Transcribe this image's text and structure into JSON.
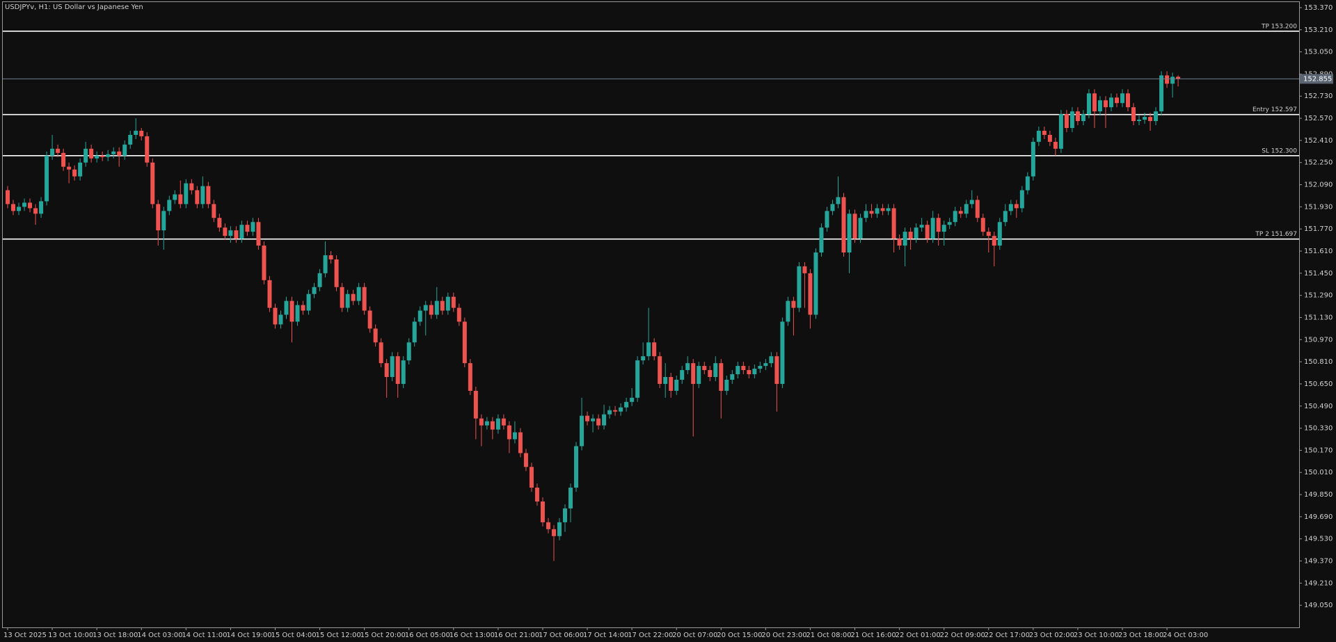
{
  "chart_data": {
    "type": "candlestick",
    "title": "USDJPYv, H1:  US Dollar vs Japanese Yen",
    "categories": [
      "13 Oct 2025",
      null,
      null,
      null,
      null,
      null,
      null,
      null,
      "13 Oct 10:00",
      null,
      null,
      null,
      null,
      null,
      null,
      null,
      "13 Oct 18:00",
      null,
      null,
      null,
      null,
      null,
      null,
      null,
      "14 Oct 03:00",
      null,
      null,
      null,
      null,
      null,
      null,
      null,
      "14 Oct 11:00",
      null,
      null,
      null,
      null,
      null,
      null,
      null,
      "14 Oct 19:00",
      null,
      null,
      null,
      null,
      null,
      null,
      null,
      "15 Oct 04:00",
      null,
      null,
      null,
      null,
      null,
      null,
      null,
      "15 Oct 12:00",
      null,
      null,
      null,
      null,
      null,
      null,
      null,
      "15 Oct 20:00",
      null,
      null,
      null,
      null,
      null,
      null,
      null,
      "16 Oct 05:00",
      null,
      null,
      null,
      null,
      null,
      null,
      null,
      "16 Oct 13:00",
      null,
      null,
      null,
      null,
      null,
      null,
      null,
      "16 Oct 21:00",
      null,
      null,
      null,
      null,
      null,
      null,
      null,
      "17 Oct 06:00",
      null,
      null,
      null,
      null,
      null,
      null,
      null,
      "17 Oct 14:00",
      null,
      null,
      null,
      null,
      null,
      null,
      null,
      "17 Oct 22:00",
      null,
      null,
      null,
      null,
      null,
      null,
      null,
      "20 Oct 07:00",
      null,
      null,
      null,
      null,
      null,
      null,
      null,
      "20 Oct 15:00",
      null,
      null,
      null,
      null,
      null,
      null,
      null,
      "20 Oct 23:00",
      null,
      null,
      null,
      null,
      null,
      null,
      null,
      "21 Oct 08:00",
      null,
      null,
      null,
      null,
      null,
      null,
      null,
      "21 Oct 16:00",
      null,
      null,
      null,
      null,
      null,
      null,
      null,
      "22 Oct 01:00",
      null,
      null,
      null,
      null,
      null,
      null,
      null,
      "22 Oct 09:00",
      null,
      null,
      null,
      null,
      null,
      null,
      null,
      "22 Oct 17:00",
      null,
      null,
      null,
      null,
      null,
      null,
      null,
      "23 Oct 02:00",
      null,
      null,
      null,
      null,
      null,
      null,
      null,
      "23 Oct 10:00",
      null,
      null,
      null,
      null,
      null,
      null,
      null,
      "23 Oct 18:00",
      null,
      null,
      null,
      null,
      null,
      null,
      null,
      "24 Oct 03:00",
      null,
      null
    ],
    "open": [
      152.05,
      151.95,
      151.9,
      151.93,
      151.96,
      151.92,
      151.88,
      151.97,
      152.3,
      152.35,
      152.32,
      152.22,
      152.2,
      152.15,
      152.25,
      152.35,
      152.28,
      152.3,
      152.29,
      152.31,
      152.33,
      152.3,
      152.38,
      152.45,
      152.48,
      152.44,
      152.25,
      151.95,
      151.76,
      151.9,
      151.98,
      152.02,
      151.95,
      152.1,
      152.05,
      151.95,
      152.08,
      151.95,
      151.85,
      151.78,
      151.72,
      151.76,
      151.7,
      151.8,
      151.75,
      151.82,
      151.65,
      151.4,
      151.2,
      151.08,
      151.15,
      151.25,
      151.1,
      151.22,
      151.18,
      151.3,
      151.35,
      151.45,
      151.58,
      151.55,
      151.35,
      151.2,
      151.3,
      151.25,
      151.35,
      151.18,
      151.05,
      150.95,
      150.8,
      150.7,
      150.85,
      150.65,
      150.82,
      150.95,
      151.1,
      151.18,
      151.22,
      151.15,
      151.25,
      151.18,
      151.28,
      151.2,
      151.1,
      150.8,
      150.6,
      150.4,
      150.35,
      150.38,
      150.32,
      150.4,
      150.35,
      150.25,
      150.3,
      150.15,
      150.05,
      149.9,
      149.8,
      149.65,
      149.6,
      149.55,
      149.65,
      149.75,
      149.9,
      150.2,
      150.42,
      150.38,
      150.4,
      150.35,
      150.43,
      150.46,
      150.45,
      150.48,
      150.52,
      150.55,
      150.82,
      150.85,
      150.95,
      150.85,
      150.65,
      150.7,
      150.6,
      150.68,
      150.75,
      150.8,
      150.65,
      150.78,
      150.75,
      150.7,
      150.8,
      150.6,
      150.68,
      150.72,
      150.78,
      150.75,
      150.72,
      150.76,
      150.78,
      150.8,
      150.85,
      150.65,
      151.1,
      151.25,
      151.2,
      151.5,
      151.45,
      151.15,
      151.6,
      151.78,
      151.9,
      151.95,
      152.0,
      151.6,
      151.88,
      151.7,
      151.85,
      151.9,
      151.88,
      151.92,
      151.9,
      151.92,
      151.7,
      151.65,
      151.75,
      151.7,
      151.78,
      151.8,
      151.7,
      151.85,
      151.75,
      151.8,
      151.82,
      151.9,
      151.88,
      151.95,
      151.98,
      151.85,
      151.75,
      151.72,
      151.65,
      151.82,
      151.9,
      151.95,
      151.92,
      152.05,
      152.15,
      152.4,
      152.48,
      152.45,
      152.4,
      152.35,
      152.6,
      152.5,
      152.62,
      152.55,
      152.6,
      152.75,
      152.62,
      152.7,
      152.65,
      152.72,
      152.68,
      152.75,
      152.65,
      152.55,
      152.56,
      152.58,
      152.55,
      152.62,
      152.88,
      152.82,
      152.87
    ],
    "high": [
      152.08,
      151.98,
      151.96,
      151.99,
      151.99,
      151.95,
      152.0,
      152.33,
      152.45,
      152.38,
      152.35,
      152.25,
      152.23,
      152.28,
      152.4,
      152.38,
      152.33,
      152.33,
      152.34,
      152.36,
      152.36,
      152.41,
      152.48,
      152.57,
      152.5,
      152.47,
      152.28,
      151.98,
      151.93,
      152.01,
      152.05,
      152.12,
      152.13,
      152.13,
      152.08,
      152.15,
      152.11,
      151.98,
      151.88,
      151.81,
      151.79,
      151.79,
      151.83,
      151.83,
      151.85,
      151.85,
      151.68,
      151.43,
      151.23,
      151.18,
      151.28,
      151.28,
      151.25,
      151.25,
      151.33,
      151.38,
      151.48,
      151.68,
      151.61,
      151.58,
      151.38,
      151.33,
      151.33,
      151.38,
      151.38,
      151.21,
      151.08,
      150.98,
      150.83,
      150.88,
      150.88,
      150.85,
      150.98,
      151.13,
      151.21,
      151.25,
      151.25,
      151.35,
      151.28,
      151.31,
      151.31,
      151.23,
      151.13,
      150.83,
      150.63,
      150.43,
      150.41,
      150.41,
      150.43,
      150.43,
      150.38,
      150.38,
      150.33,
      150.18,
      150.08,
      149.93,
      149.83,
      149.68,
      149.63,
      149.68,
      149.78,
      149.93,
      150.23,
      150.55,
      150.45,
      150.43,
      150.43,
      150.5,
      150.49,
      150.49,
      150.51,
      150.55,
      150.62,
      150.85,
      150.95,
      151.2,
      150.98,
      150.88,
      150.8,
      150.73,
      150.71,
      150.78,
      150.85,
      150.83,
      150.81,
      150.81,
      150.78,
      150.85,
      150.83,
      150.71,
      150.75,
      150.81,
      150.81,
      150.78,
      150.79,
      150.81,
      150.83,
      150.88,
      150.88,
      151.13,
      151.28,
      151.28,
      151.53,
      151.53,
      151.48,
      151.63,
      151.81,
      151.93,
      151.98,
      152.15,
      152.03,
      151.91,
      151.91,
      151.88,
      151.95,
      151.95,
      151.95,
      151.95,
      151.95,
      151.95,
      151.73,
      151.78,
      151.78,
      151.81,
      151.85,
      151.83,
      151.9,
      151.88,
      151.83,
      151.85,
      151.93,
      151.93,
      151.98,
      152.05,
      152.01,
      151.88,
      151.78,
      151.75,
      151.85,
      151.95,
      151.98,
      151.98,
      152.08,
      152.18,
      152.43,
      152.51,
      152.51,
      152.48,
      152.43,
      152.63,
      152.63,
      152.65,
      152.65,
      152.63,
      152.78,
      152.78,
      152.73,
      152.73,
      152.75,
      152.75,
      152.78,
      152.78,
      152.68,
      152.59,
      152.61,
      152.61,
      152.65,
      152.91,
      152.91,
      152.9,
      152.88
    ],
    "low": [
      151.92,
      151.87,
      151.87,
      151.9,
      151.89,
      151.8,
      151.85,
      151.94,
      152.27,
      152.29,
      152.19,
      152.1,
      152.12,
      152.12,
      152.22,
      152.25,
      152.25,
      152.26,
      152.26,
      152.28,
      152.22,
      152.27,
      152.35,
      152.42,
      152.41,
      152.22,
      151.92,
      151.65,
      151.62,
      151.87,
      151.95,
      151.92,
      151.92,
      152.02,
      151.92,
      151.92,
      151.92,
      151.82,
      151.75,
      151.69,
      151.67,
      151.67,
      151.67,
      151.72,
      151.72,
      151.62,
      151.37,
      151.17,
      151.05,
      151.05,
      151.12,
      150.95,
      151.07,
      151.15,
      151.15,
      151.27,
      151.32,
      151.42,
      151.52,
      151.32,
      151.17,
      151.17,
      151.22,
      151.22,
      151.15,
      151.02,
      150.92,
      150.77,
      150.55,
      150.67,
      150.55,
      150.62,
      150.79,
      150.92,
      151.07,
      151.0,
      151.12,
      151.12,
      151.15,
      151.15,
      151.17,
      151.07,
      150.77,
      150.57,
      150.25,
      150.2,
      150.32,
      150.25,
      150.29,
      150.32,
      150.15,
      150.22,
      150.12,
      150.02,
      149.87,
      149.77,
      149.62,
      149.57,
      149.37,
      149.52,
      149.58,
      149.65,
      149.87,
      150.17,
      150.35,
      150.3,
      150.32,
      150.32,
      150.4,
      150.42,
      150.42,
      150.45,
      150.49,
      150.52,
      150.79,
      150.82,
      150.82,
      150.62,
      150.55,
      150.55,
      150.57,
      150.65,
      150.72,
      150.27,
      150.62,
      150.72,
      150.67,
      150.67,
      150.4,
      150.57,
      150.65,
      150.69,
      150.72,
      150.69,
      150.69,
      150.73,
      150.75,
      150.77,
      150.45,
      150.62,
      151.07,
      151.0,
      151.17,
      151.2,
      151.05,
      151.12,
      151.57,
      151.75,
      151.87,
      151.92,
      151.57,
      151.45,
      151.67,
      151.67,
      151.82,
      151.85,
      151.85,
      151.87,
      151.87,
      151.6,
      151.62,
      151.5,
      151.62,
      151.67,
      151.75,
      151.67,
      151.67,
      151.65,
      151.65,
      151.77,
      151.79,
      151.85,
      151.85,
      151.92,
      151.82,
      151.72,
      151.6,
      151.5,
      151.62,
      151.79,
      151.87,
      151.85,
      151.89,
      152.02,
      152.12,
      152.37,
      152.42,
      152.37,
      152.3,
      152.32,
      152.47,
      152.47,
      152.52,
      152.52,
      152.57,
      152.5,
      152.59,
      152.5,
      152.62,
      152.65,
      152.65,
      152.62,
      152.52,
      152.52,
      152.53,
      152.48,
      152.52,
      152.59,
      152.79,
      152.72,
      152.8
    ],
    "close": [
      151.95,
      151.9,
      151.93,
      151.96,
      151.92,
      151.88,
      151.97,
      152.3,
      152.35,
      152.32,
      152.22,
      152.2,
      152.15,
      152.25,
      152.35,
      152.28,
      152.3,
      152.29,
      152.31,
      152.33,
      152.3,
      152.38,
      152.45,
      152.48,
      152.44,
      152.25,
      151.95,
      151.76,
      151.9,
      151.98,
      152.02,
      151.95,
      152.1,
      152.05,
      151.95,
      152.08,
      151.95,
      151.85,
      151.78,
      151.72,
      151.76,
      151.7,
      151.8,
      151.75,
      151.82,
      151.65,
      151.4,
      151.2,
      151.08,
      151.15,
      151.25,
      151.1,
      151.22,
      151.18,
      151.3,
      151.35,
      151.45,
      151.58,
      151.55,
      151.35,
      151.2,
      151.3,
      151.25,
      151.35,
      151.18,
      151.05,
      150.95,
      150.8,
      150.7,
      150.85,
      150.65,
      150.82,
      150.95,
      151.1,
      151.18,
      151.22,
      151.15,
      151.25,
      151.18,
      151.28,
      151.2,
      151.1,
      150.8,
      150.6,
      150.4,
      150.35,
      150.38,
      150.32,
      150.4,
      150.35,
      150.25,
      150.3,
      150.15,
      150.05,
      149.9,
      149.8,
      149.65,
      149.6,
      149.55,
      149.65,
      149.75,
      149.9,
      150.2,
      150.42,
      150.38,
      150.4,
      150.35,
      150.43,
      150.46,
      150.45,
      150.48,
      150.52,
      150.55,
      150.82,
      150.85,
      150.95,
      150.85,
      150.65,
      150.7,
      150.6,
      150.68,
      150.75,
      150.8,
      150.65,
      150.78,
      150.75,
      150.7,
      150.8,
      150.6,
      150.68,
      150.72,
      150.78,
      150.75,
      150.72,
      150.76,
      150.78,
      150.8,
      150.85,
      150.65,
      151.1,
      151.25,
      151.2,
      151.5,
      151.45,
      151.15,
      151.6,
      151.78,
      151.9,
      151.95,
      152.0,
      151.6,
      151.88,
      151.7,
      151.85,
      151.9,
      151.88,
      151.92,
      151.9,
      151.92,
      151.7,
      151.65,
      151.75,
      151.7,
      151.78,
      151.8,
      151.7,
      151.85,
      151.75,
      151.8,
      151.82,
      151.9,
      151.88,
      151.95,
      151.98,
      151.85,
      151.75,
      151.72,
      151.65,
      151.82,
      151.9,
      151.95,
      151.92,
      152.05,
      152.15,
      152.4,
      152.48,
      152.45,
      152.4,
      152.35,
      152.6,
      152.5,
      152.62,
      152.55,
      152.6,
      152.75,
      152.62,
      152.7,
      152.65,
      152.72,
      152.68,
      152.75,
      152.65,
      152.55,
      152.56,
      152.58,
      152.55,
      152.62,
      152.88,
      152.82,
      152.87,
      152.855
    ],
    "up_color": "#26a69a",
    "down_color": "#ef5350",
    "ylim": [
      148.89,
      153.41
    ],
    "yticks": [
      {
        "value": 153.37,
        "label": "153.370"
      },
      {
        "value": 153.21,
        "label": "153.210"
      },
      {
        "value": 153.05,
        "label": "153.050"
      },
      {
        "value": 152.89,
        "label": "152.890"
      },
      {
        "value": 152.73,
        "label": "152.730"
      },
      {
        "value": 152.57,
        "label": "152.570"
      },
      {
        "value": 152.41,
        "label": "152.410"
      },
      {
        "value": 152.25,
        "label": "152.250"
      },
      {
        "value": 152.09,
        "label": "152.090"
      },
      {
        "value": 151.93,
        "label": "151.930"
      },
      {
        "value": 151.77,
        "label": "151.770"
      },
      {
        "value": 151.61,
        "label": "151.610"
      },
      {
        "value": 151.45,
        "label": "151.450"
      },
      {
        "value": 151.29,
        "label": "151.290"
      },
      {
        "value": 151.13,
        "label": "151.130"
      },
      {
        "value": 150.97,
        "label": "150.970"
      },
      {
        "value": 150.81,
        "label": "150.810"
      },
      {
        "value": 150.65,
        "label": "150.650"
      },
      {
        "value": 150.49,
        "label": "150.490"
      },
      {
        "value": 150.33,
        "label": "150.330"
      },
      {
        "value": 150.17,
        "label": "150.170"
      },
      {
        "value": 150.01,
        "label": "150.010"
      },
      {
        "value": 149.85,
        "label": "149.850"
      },
      {
        "value": 149.69,
        "label": "149.690"
      },
      {
        "value": 149.53,
        "label": "149.530"
      },
      {
        "value": 149.37,
        "label": "149.370"
      },
      {
        "value": 149.21,
        "label": "149.210"
      },
      {
        "value": 149.05,
        "label": "149.050"
      }
    ],
    "levels": [
      {
        "label": "TP 153.200",
        "value": 153.2
      },
      {
        "label": "Entry 152.597",
        "value": 152.597
      },
      {
        "label": "SL 152.300",
        "value": 152.3
      },
      {
        "label": "TP 2 151.697",
        "value": 151.697
      }
    ],
    "grid": false
  }
}
